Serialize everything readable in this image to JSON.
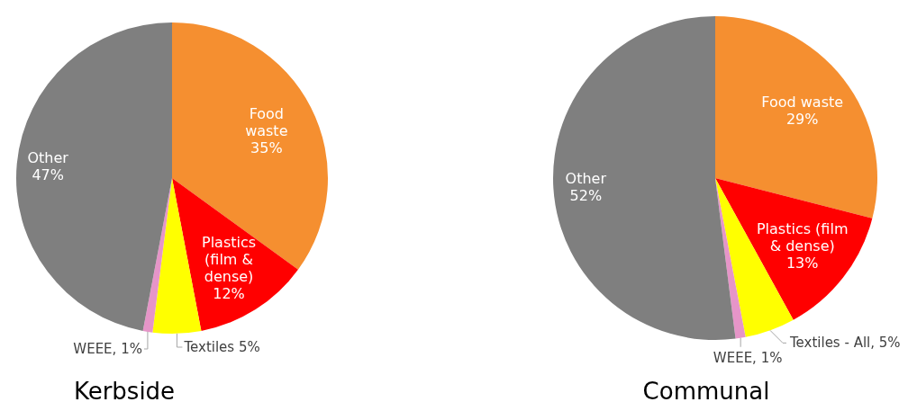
{
  "chart_data": [
    {
      "type": "pie",
      "title": "Kerbside",
      "categories": [
        "Food waste",
        "Plastics (film & dense)",
        "Textiles",
        "WEEE",
        "Other"
      ],
      "values": [
        35,
        12,
        5,
        1,
        47
      ],
      "value_labels": [
        "35%",
        "12%",
        "5%",
        "1%",
        "47%"
      ],
      "colors": [
        "#f58f30",
        "#ff0000",
        "#ffff00",
        "#e695c8",
        "#7f7f7f"
      ]
    },
    {
      "type": "pie",
      "title": "Communal",
      "categories": [
        "Food waste",
        "Plastics (film & dense)",
        "Textiles - All",
        "WEEE",
        "Other"
      ],
      "values": [
        29,
        13,
        5,
        1,
        52
      ],
      "value_labels": [
        "29%",
        "13%",
        "5%",
        "1%",
        "52%"
      ],
      "colors": [
        "#f58f30",
        "#ff0000",
        "#ffff00",
        "#e695c8",
        "#7f7f7f"
      ]
    }
  ]
}
